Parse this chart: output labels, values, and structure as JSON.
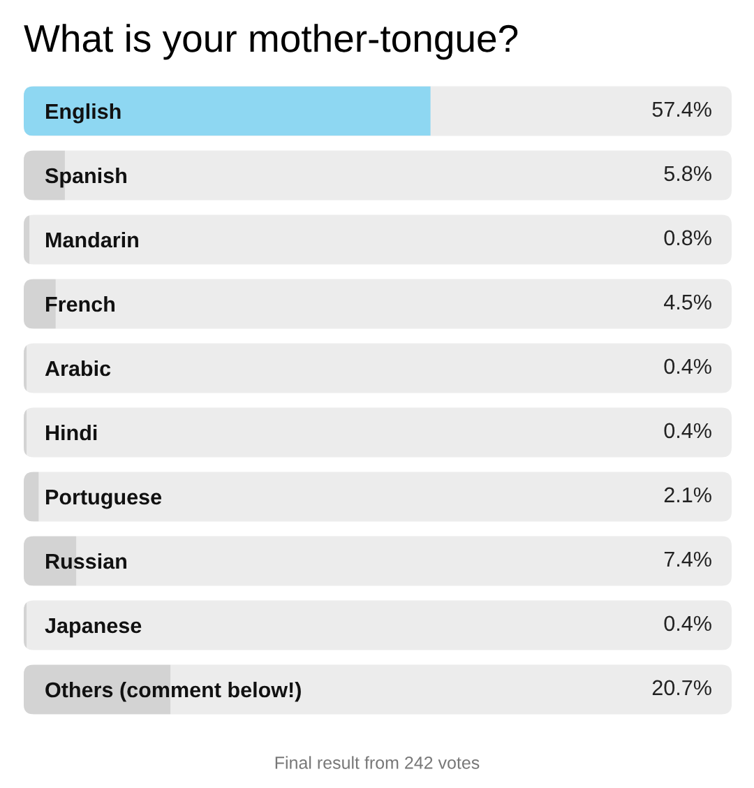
{
  "chart_data": {
    "type": "bar",
    "orientation": "horizontal",
    "title": "What is your mother-tongue?",
    "categories": [
      "English",
      "Spanish",
      "Mandarin",
      "French",
      "Arabic",
      "Hindi",
      "Portuguese",
      "Russian",
      "Japanese",
      "Others (comment below!)"
    ],
    "values": [
      57.4,
      5.8,
      0.8,
      4.5,
      0.4,
      0.4,
      2.1,
      7.4,
      0.4,
      20.7
    ],
    "colors": [
      "#8ed7f2",
      "#d3d3d3",
      "#d3d3d3",
      "#d3d3d3",
      "#d3d3d3",
      "#d3d3d3",
      "#d3d3d3",
      "#d3d3d3",
      "#d3d3d3",
      "#d3d3d3"
    ],
    "value_labels": [
      "57.4%",
      "5.8%",
      "0.8%",
      "4.5%",
      "0.4%",
      "0.4%",
      "2.1%",
      "7.4%",
      "0.4%",
      "20.7%"
    ],
    "tick_labels": "y",
    "annotations": [
      "Final result from 242 votes"
    ]
  }
}
